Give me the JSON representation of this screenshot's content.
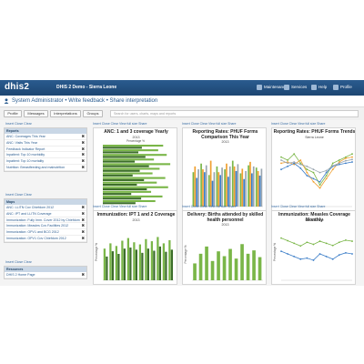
{
  "topbar": {
    "logo": "dhis2",
    "app_name": "DHIS 2 Demo - Sierra Leone",
    "menu": [
      "Maintenance",
      "Services",
      "Help",
      "Profile"
    ]
  },
  "userbar": {
    "user": "System Administrator",
    "sep1": "•",
    "write_feedback": "Write feedback",
    "sep2": "•",
    "share": "Share interpretation"
  },
  "tabs": [
    "Profile",
    "Messages",
    "Interpretations",
    "Groups"
  ],
  "search_placeholder": "Search for users, charts, maps and reports",
  "sidebar": {
    "links1": "Insert Close Clear",
    "reports_head": "Reports",
    "reports": [
      "ANC: Coverages This Year",
      "ANC: Visits This Year",
      "Feedback Indicator Report",
      "Inpatient: Top 10 morbidity",
      "Inpatient: Top 10 mortality",
      "Nutrition: Breastfeeding and malnutrition"
    ],
    "links2": "Insert Close Clear",
    "maps_head": "Maps",
    "maps": [
      "ANC: LLITN Cov Chiefdom 2012",
      "ANC: IPT and LLITN Coverage",
      "Immunization: Fully Imm. Cover 2012 by Chiefdom",
      "Immunization: Measles Cov Facilities 2012",
      "Immunization: OPV1 and BCG 2012",
      "Immunization: OPV1 Cov Chiefdom 2012"
    ],
    "links3": "Insert Close Clear",
    "resources_head": "Resources",
    "resources": [
      "DHIS 2 Home Page"
    ]
  },
  "panel_links": "Insert Close Clear View full size Share",
  "panels": [
    {
      "title": "ANC: 1 and 3 coverage Yearly",
      "subtitle": "2013",
      "axis": "Percentage %"
    },
    {
      "title": "Reporting Rates: PHUF Forms Comparison This Year",
      "subtitle": "2013"
    },
    {
      "title": "Reporting Rates: PHUF Forms Trends",
      "subtitle": "Sierra Leone"
    },
    {
      "title": "Immunization: IPT 1 and 2 Coverage",
      "subtitle": "2013",
      "axis": "Percentage %"
    },
    {
      "title": "Delivery: Births attended by skilled health personnel",
      "subtitle": "2013",
      "axis": "Percentage %"
    },
    {
      "title": "Immunization: Measles Coverage Monthly",
      "subtitle": "Sierra Leone",
      "axis": "Percentage %"
    }
  ],
  "legends": {
    "anc": [
      "ANC 1 Coverage",
      "ANC 3 Coverage"
    ],
    "rr": [
      "Morbidity Form",
      "Child Health Form",
      "Reproductive Health Form",
      "Mortality Form"
    ]
  },
  "colors": {
    "topbar": "#1d4672",
    "green": "#7ab648",
    "dark_green": "#3c6e2a",
    "orange": "#f0a030",
    "blue": "#3c7ec8",
    "gray": "#9aa6b0"
  },
  "chart_data": [
    {
      "type": "bar",
      "title": "ANC: 1 and 3 coverage Yearly",
      "subtitle": "2013",
      "xlabel": "Percentage %",
      "series": [
        {
          "name": "ANC 1 Coverage",
          "values": [
            85,
            78,
            90,
            72,
            95,
            80,
            70,
            88,
            76,
            92,
            68,
            84,
            74
          ]
        },
        {
          "name": "ANC 3 Coverage",
          "values": [
            55,
            50,
            60,
            45,
            65,
            52,
            42,
            58,
            48,
            62,
            40,
            54,
            46
          ]
        }
      ]
    },
    {
      "type": "bar",
      "title": "Reporting Rates: PHUF Forms Comparison This Year",
      "subtitle": "2013",
      "series": [
        {
          "name": "Morbidity Form",
          "values": [
            60,
            75,
            55,
            70,
            65,
            80,
            58,
            72,
            68
          ]
        },
        {
          "name": "Child Health Form",
          "values": [
            70,
            65,
            80,
            60,
            75,
            70,
            66,
            78,
            62
          ]
        },
        {
          "name": "Reproductive Health Form",
          "values": [
            50,
            60,
            45,
            55,
            52,
            62,
            48,
            58,
            54
          ]
        },
        {
          "name": "Mortality Form",
          "values": [
            65,
            72,
            60,
            68,
            70,
            74,
            62,
            70,
            66
          ]
        }
      ]
    },
    {
      "type": "line",
      "title": "Reporting Rates: PHUF Forms Trends",
      "subtitle": "Sierra Leone",
      "series": [
        {
          "name": "Morbidity Form",
          "values": [
            80,
            75,
            85,
            70,
            60,
            55,
            35,
            50,
            70,
            75,
            80,
            85
          ]
        },
        {
          "name": "Child Health Form",
          "values": [
            70,
            72,
            68,
            75,
            55,
            40,
            30,
            45,
            60,
            72,
            78,
            80
          ]
        },
        {
          "name": "Reproductive Health Form",
          "values": [
            60,
            65,
            70,
            62,
            50,
            45,
            40,
            55,
            65,
            68,
            70,
            72
          ]
        },
        {
          "name": "Mortality Form",
          "values": [
            75,
            70,
            72,
            68,
            65,
            60,
            55,
            58,
            66,
            70,
            74,
            76
          ]
        }
      ]
    },
    {
      "type": "bar",
      "title": "Immunization: IPT 1 and 2 Coverage",
      "subtitle": "2013",
      "ylabel": "Percentage %",
      "series": [
        {
          "values": [
            60,
            70,
            65,
            75,
            80,
            72,
            68,
            78,
            74,
            82,
            70,
            76
          ]
        },
        {
          "values": [
            45,
            55,
            50,
            60,
            62,
            58,
            52,
            60,
            56,
            64,
            54,
            58
          ]
        }
      ]
    },
    {
      "type": "bar",
      "title": "Delivery: Births attended by skilled health personnel",
      "subtitle": "2013",
      "ylabel": "Percentage %",
      "values": [
        35,
        55,
        70,
        40,
        60,
        50,
        65,
        45,
        75,
        55,
        62,
        48
      ]
    },
    {
      "type": "line",
      "title": "Immunization: Measles Coverage Monthly",
      "subtitle": "Sierra Leone",
      "ylabel": "Percentage %",
      "series": [
        {
          "values": [
            80,
            75,
            70,
            65,
            72,
            68,
            74,
            70,
            66,
            72,
            76,
            74
          ]
        },
        {
          "values": [
            55,
            50,
            45,
            40,
            42,
            38,
            50,
            45,
            40,
            48,
            52,
            50
          ]
        }
      ]
    }
  ]
}
